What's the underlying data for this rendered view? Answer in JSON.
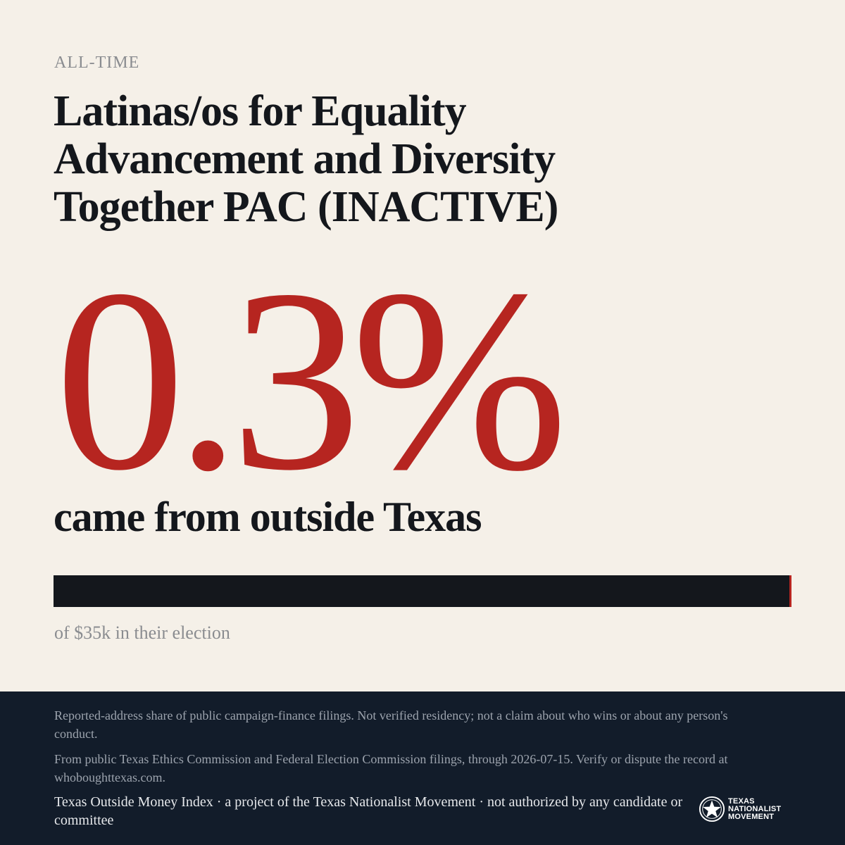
{
  "period_label": "ALL-TIME",
  "committee_name": "Latinas/os for Equality Advancement and Diversity Together PAC (INACTIVE)",
  "headline_percent": "0.3%",
  "headline_caption": "came from outside Texas",
  "outside_share": 0.003,
  "total_caption": "of $35k in their election",
  "colors": {
    "background": "#f5f0e8",
    "accent_red": "#b62520",
    "ink": "#14171c",
    "footer": "#121c2a"
  },
  "footer": {
    "disclaimer": "Reported-address share of public campaign-finance filings. Not verified residency; not a claim about who wins or about any person's conduct.",
    "sources": "From public Texas Ethics Commission and Federal Election Commission filings, through 2026-07-15. Verify or dispute the record at whoboughttexas.com.",
    "credit": "Texas Outside Money Index · a project of the Texas Nationalist Movement · not authorized by any candidate or committee",
    "logo": {
      "icon": "star-seal-icon",
      "line1": "TEXAS",
      "line2": "NATIONALIST",
      "line3": "MOVEMENT"
    }
  }
}
